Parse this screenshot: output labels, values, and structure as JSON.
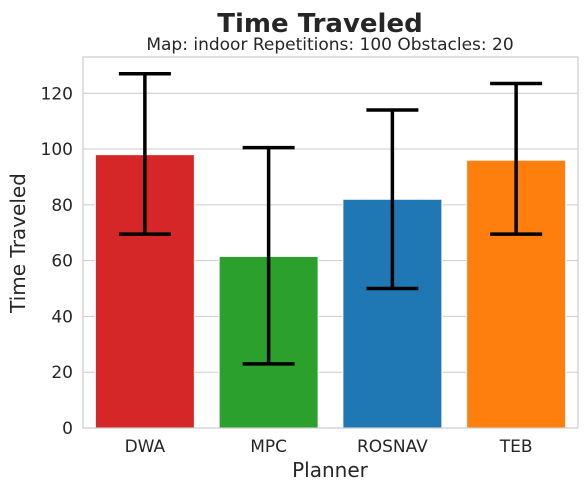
{
  "chart_data": {
    "type": "bar",
    "title": "Time Traveled",
    "subtitle": "Map: indoor Repetitions: 100 Obstacles: 20",
    "xlabel": "Planner",
    "ylabel": "Time Traveled",
    "categories": [
      "DWA",
      "MPC",
      "ROSNAV",
      "TEB"
    ],
    "values": [
      98,
      61.5,
      82,
      96
    ],
    "error_low": [
      69.5,
      23,
      50,
      69.5
    ],
    "error_high": [
      127,
      100.5,
      114,
      123.5
    ],
    "colors": [
      "#d62728",
      "#2ca02c",
      "#1f77b4",
      "#ff7f0e"
    ],
    "ylim": [
      0,
      133
    ],
    "yticks": [
      0,
      20,
      40,
      60,
      80,
      100,
      120
    ],
    "grid": true,
    "legend": "none"
  }
}
